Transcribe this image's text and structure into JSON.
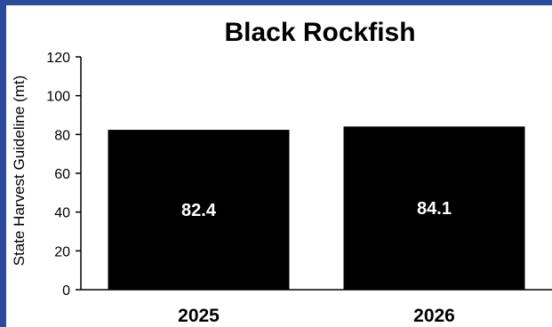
{
  "chart_data": {
    "type": "bar",
    "title": "Black Rockfish",
    "ylabel": "State Harvest Guideline (mt)",
    "xlabel": "",
    "categories": [
      "2025",
      "2026"
    ],
    "values": [
      82.4,
      84.1
    ],
    "data_labels": [
      "82.4",
      "84.1"
    ],
    "ylim": [
      0,
      120
    ],
    "yticks": [
      0,
      20,
      40,
      60,
      80,
      100,
      120
    ],
    "grid": false,
    "legend": "none",
    "colors": {
      "bar": "#000000",
      "data_label": "#ffffff",
      "background": "#ffffff",
      "border": "#2b4a9b"
    }
  }
}
